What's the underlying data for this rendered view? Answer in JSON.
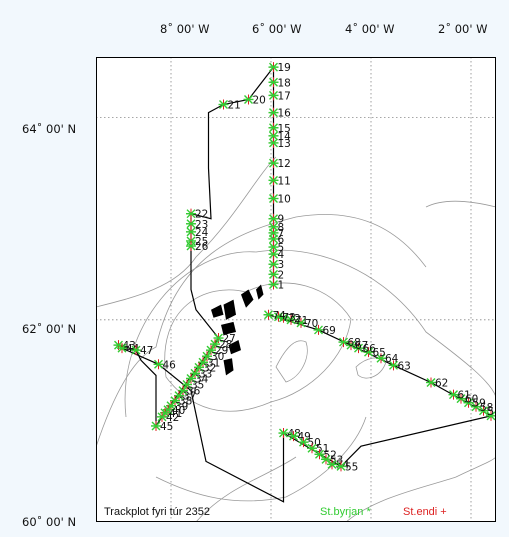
{
  "map": {
    "lon_labels": [
      "8˚ 00' W",
      "6˚ 00' W",
      "4˚ 00' W",
      "2˚ 00' W"
    ],
    "lat_labels": [
      "64˚ 00' N",
      "62˚ 00' N",
      "60˚ 00' N"
    ],
    "extent": {
      "lon_min": -9.5,
      "lon_max": -1.5,
      "lat_min": 60.0,
      "lat_max": 64.6
    },
    "title": "Trackplot fyri túr 2352",
    "legend_start": "St.byrjan *",
    "legend_end": "St.endi +",
    "colors": {
      "start": "#33cc33",
      "end": "#dd2222",
      "track": "#000000",
      "grid": "#888888",
      "contour": "#9a9a9a",
      "land": "#000000"
    },
    "stations": [
      {
        "id": "1",
        "lon": -5.95,
        "lat": 62.35
      },
      {
        "id": "2",
        "lon": -5.95,
        "lat": 62.45
      },
      {
        "id": "3",
        "lon": -5.95,
        "lat": 62.55
      },
      {
        "id": "4",
        "lon": -5.95,
        "lat": 62.65
      },
      {
        "id": "5",
        "lon": -5.95,
        "lat": 62.72
      },
      {
        "id": "6",
        "lon": -5.95,
        "lat": 62.8
      },
      {
        "id": "7",
        "lon": -5.95,
        "lat": 62.86
      },
      {
        "id": "8",
        "lon": -5.95,
        "lat": 62.92
      },
      {
        "id": "9",
        "lon": -5.95,
        "lat": 63.0
      },
      {
        "id": "10",
        "lon": -5.95,
        "lat": 63.2
      },
      {
        "id": "11",
        "lon": -5.95,
        "lat": 63.38
      },
      {
        "id": "12",
        "lon": -5.95,
        "lat": 63.55
      },
      {
        "id": "13",
        "lon": -5.95,
        "lat": 63.75
      },
      {
        "id": "14",
        "lon": -5.95,
        "lat": 63.82
      },
      {
        "id": "15",
        "lon": -5.95,
        "lat": 63.9
      },
      {
        "id": "16",
        "lon": -5.95,
        "lat": 64.05
      },
      {
        "id": "17",
        "lon": -5.95,
        "lat": 64.22
      },
      {
        "id": "18",
        "lon": -5.95,
        "lat": 64.35
      },
      {
        "id": "19",
        "lon": -5.95,
        "lat": 64.5
      },
      {
        "id": "20",
        "lon": -6.45,
        "lat": 64.18
      },
      {
        "id": "21",
        "lon": -6.95,
        "lat": 64.13
      },
      {
        "id": "22",
        "lon": -7.6,
        "lat": 63.05
      },
      {
        "id": "23",
        "lon": -7.6,
        "lat": 62.95
      },
      {
        "id": "24",
        "lon": -7.6,
        "lat": 62.87
      },
      {
        "id": "25",
        "lon": -7.6,
        "lat": 62.78
      },
      {
        "id": "26",
        "lon": -7.6,
        "lat": 62.73
      },
      {
        "id": "27",
        "lon": -7.05,
        "lat": 61.82
      },
      {
        "id": "28",
        "lon": -7.12,
        "lat": 61.76
      },
      {
        "id": "29",
        "lon": -7.2,
        "lat": 61.7
      },
      {
        "id": "30",
        "lon": -7.28,
        "lat": 61.64
      },
      {
        "id": "31",
        "lon": -7.36,
        "lat": 61.58
      },
      {
        "id": "32",
        "lon": -7.44,
        "lat": 61.53
      },
      {
        "id": "33",
        "lon": -7.52,
        "lat": 61.47
      },
      {
        "id": "34",
        "lon": -7.6,
        "lat": 61.42
      },
      {
        "id": "35",
        "lon": -7.68,
        "lat": 61.36
      },
      {
        "id": "36",
        "lon": -7.76,
        "lat": 61.3
      },
      {
        "id": "37",
        "lon": -7.84,
        "lat": 61.25
      },
      {
        "id": "38",
        "lon": -7.92,
        "lat": 61.2
      },
      {
        "id": "39",
        "lon": -8.0,
        "lat": 61.15
      },
      {
        "id": "40",
        "lon": -8.06,
        "lat": 61.11
      },
      {
        "id": "41",
        "lon": -8.12,
        "lat": 61.08
      },
      {
        "id": "42",
        "lon": -8.18,
        "lat": 61.04
      },
      {
        "id": "43",
        "lon": -9.05,
        "lat": 61.75
      },
      {
        "id": "44",
        "lon": -8.98,
        "lat": 61.72
      },
      {
        "id": "45",
        "lon": -8.3,
        "lat": 60.95
      },
      {
        "id": "46",
        "lon": -8.25,
        "lat": 61.56
      },
      {
        "id": "47",
        "lon": -8.7,
        "lat": 61.7
      },
      {
        "id": "48",
        "lon": -5.75,
        "lat": 60.88
      },
      {
        "id": "49",
        "lon": -5.55,
        "lat": 60.85
      },
      {
        "id": "50",
        "lon": -5.35,
        "lat": 60.79
      },
      {
        "id": "51",
        "lon": -5.18,
        "lat": 60.73
      },
      {
        "id": "52",
        "lon": -5.03,
        "lat": 60.67
      },
      {
        "id": "53",
        "lon": -4.9,
        "lat": 60.62
      },
      {
        "id": "54",
        "lon": -4.78,
        "lat": 60.57
      },
      {
        "id": "55",
        "lon": -4.6,
        "lat": 60.55
      },
      {
        "id": "56",
        "lon": -1.6,
        "lat": 61.05
      },
      {
        "id": "57",
        "lon": -1.75,
        "lat": 61.1
      },
      {
        "id": "58",
        "lon": -1.9,
        "lat": 61.14
      },
      {
        "id": "59",
        "lon": -2.05,
        "lat": 61.18
      },
      {
        "id": "60",
        "lon": -2.2,
        "lat": 61.22
      },
      {
        "id": "61",
        "lon": -2.35,
        "lat": 61.26
      },
      {
        "id": "62",
        "lon": -2.8,
        "lat": 61.38
      },
      {
        "id": "63",
        "lon": -3.55,
        "lat": 61.55
      },
      {
        "id": "64",
        "lon": -3.8,
        "lat": 61.62
      },
      {
        "id": "65",
        "lon": -4.05,
        "lat": 61.68
      },
      {
        "id": "66",
        "lon": -4.25,
        "lat": 61.72
      },
      {
        "id": "67",
        "lon": -4.4,
        "lat": 61.75
      },
      {
        "id": "68",
        "lon": -4.55,
        "lat": 61.78
      },
      {
        "id": "69",
        "lon": -5.05,
        "lat": 61.9
      },
      {
        "id": "70",
        "lon": -5.4,
        "lat": 61.97
      },
      {
        "id": "71",
        "lon": -5.6,
        "lat": 62.0
      },
      {
        "id": "72",
        "lon": -5.75,
        "lat": 62.02
      },
      {
        "id": "73",
        "lon": -5.85,
        "lat": 62.03
      },
      {
        "id": "74",
        "lon": -6.05,
        "lat": 62.05
      }
    ],
    "track": [
      [
        -5.95,
        62.35
      ],
      [
        -5.95,
        64.5
      ],
      [
        -6.45,
        64.18
      ],
      [
        -6.95,
        64.13
      ],
      [
        -7.25,
        64.05
      ],
      [
        -7.25,
        63.5
      ],
      [
        -7.2,
        63.0
      ],
      [
        -7.6,
        63.05
      ],
      [
        -7.6,
        62.73
      ],
      [
        -7.6,
        62.3
      ],
      [
        -7.5,
        62.1
      ],
      [
        -7.05,
        61.82
      ],
      [
        -8.18,
        61.04
      ],
      [
        -8.3,
        60.95
      ],
      [
        -8.3,
        61.45
      ],
      [
        -8.6,
        61.6
      ],
      [
        -8.7,
        61.7
      ],
      [
        -9.05,
        61.75
      ],
      [
        -8.98,
        61.72
      ],
      [
        -8.25,
        61.56
      ],
      [
        -7.6,
        61.3
      ],
      [
        -7.3,
        60.6
      ],
      [
        -5.75,
        60.2
      ],
      [
        -5.75,
        60.88
      ],
      [
        -4.6,
        60.55
      ],
      [
        -4.2,
        60.75
      ],
      [
        -1.6,
        61.05
      ],
      [
        -2.8,
        61.38
      ],
      [
        -3.55,
        61.55
      ],
      [
        -5.05,
        61.9
      ],
      [
        -6.05,
        62.05
      ]
    ]
  }
}
